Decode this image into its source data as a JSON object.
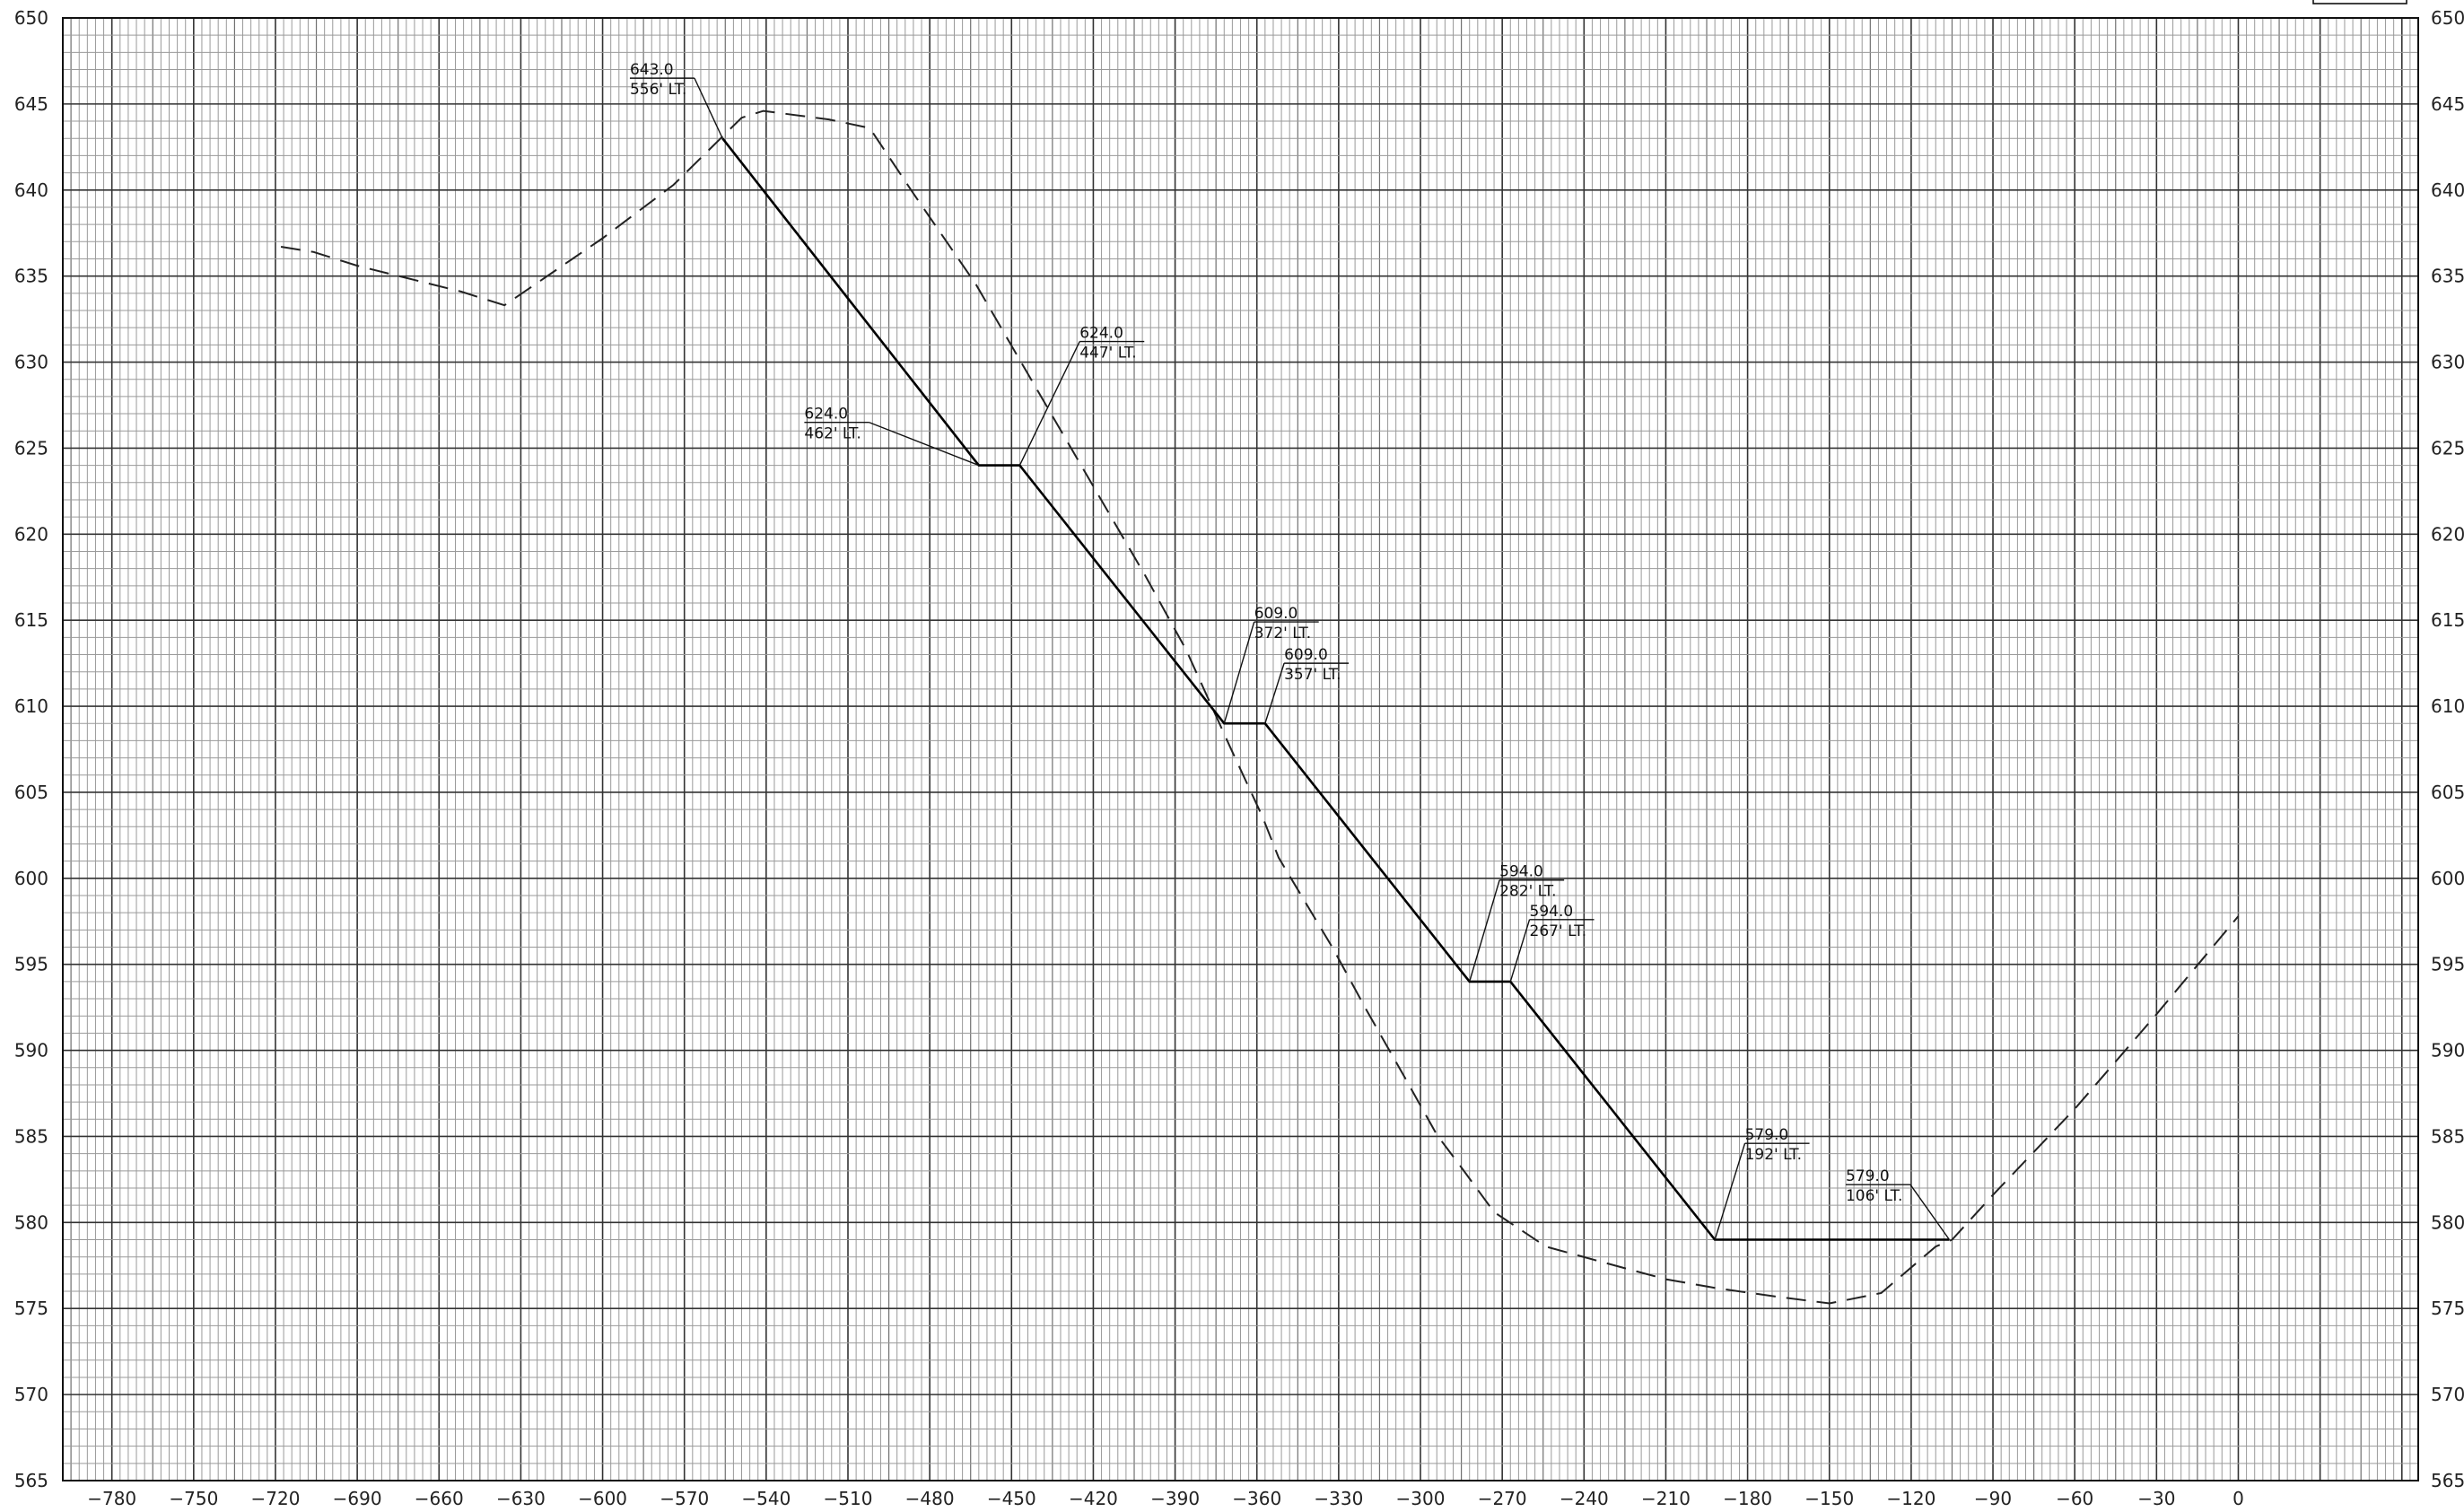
{
  "chart_data": {
    "type": "line",
    "x_axis": {
      "range": [
        -798,
        66
      ],
      "ticks": [
        -780,
        -750,
        -720,
        -690,
        -660,
        -630,
        -600,
        -570,
        -540,
        -510,
        -480,
        -450,
        -420,
        -390,
        -360,
        -330,
        -300,
        -270,
        -240,
        -210,
        -180,
        -150,
        -120,
        -90,
        -60,
        -30,
        0
      ],
      "grid_step": 3
    },
    "y_axis": {
      "range": [
        565,
        650
      ],
      "ticks": [
        565,
        570,
        575,
        580,
        585,
        590,
        595,
        600,
        605,
        610,
        615,
        620,
        625,
        630,
        635,
        640,
        645,
        650
      ],
      "grid_step": 1
    },
    "grid": true,
    "series": [
      {
        "style": "dashed",
        "points": [
          [
            -718,
            636.7
          ],
          [
            -706,
            636.4
          ],
          [
            -690,
            635.6
          ],
          [
            -652,
            634.1
          ],
          [
            -636,
            633.3
          ],
          [
            -600,
            637.2
          ],
          [
            -574,
            640.3
          ],
          [
            -549,
            644.2
          ],
          [
            -541,
            644.6
          ],
          [
            -517,
            644.1
          ],
          [
            -502,
            643.6
          ],
          [
            -486,
            639.8
          ],
          [
            -463,
            634.5
          ],
          [
            -452,
            631.5
          ],
          [
            -423,
            623.6
          ],
          [
            -401,
            617.6
          ],
          [
            -386,
            613.3
          ],
          [
            -370,
            607.7
          ],
          [
            -358,
            603.6
          ],
          [
            -352,
            601.2
          ],
          [
            -332,
            595.9
          ],
          [
            -320,
            592.4
          ],
          [
            -306,
            588.5
          ],
          [
            -294,
            585.1
          ],
          [
            -285,
            583.2
          ],
          [
            -273,
            580.6
          ],
          [
            -254,
            578.6
          ],
          [
            -231,
            577.6
          ],
          [
            -210,
            576.7
          ],
          [
            -192,
            576.2
          ],
          [
            -170,
            575.7
          ],
          [
            -150,
            575.3
          ],
          [
            -131,
            575.9
          ],
          [
            -111,
            578.6
          ],
          [
            -105,
            579.0
          ],
          [
            -90,
            581.6
          ],
          [
            -60,
            586.6
          ],
          [
            -30,
            592.1
          ],
          [
            0,
            597.8
          ]
        ]
      },
      {
        "style": "solid",
        "points": [
          [
            -556,
            643.0
          ],
          [
            -462,
            624.0
          ],
          [
            -447,
            624.0
          ],
          [
            -372,
            609.0
          ],
          [
            -357,
            609.0
          ],
          [
            -282,
            594.0
          ],
          [
            -267,
            594.0
          ],
          [
            -192,
            579.0
          ],
          [
            -106,
            579.0
          ]
        ]
      }
    ],
    "annotations": [
      {
        "lines": [
          "643.0",
          "556' LT."
        ],
        "target": [
          -556,
          643.0
        ],
        "text_at": [
          -590,
          646.5
        ]
      },
      {
        "lines": [
          "624.0",
          "447' LT."
        ],
        "target": [
          -447,
          624.0
        ],
        "text_at": [
          -425,
          631.2
        ]
      },
      {
        "lines": [
          "624.0",
          "462' LT."
        ],
        "target": [
          -462,
          624.0
        ],
        "text_at": [
          -526,
          626.5
        ]
      },
      {
        "lines": [
          "609.0",
          "372' LT."
        ],
        "target": [
          -372,
          609.0
        ],
        "text_at": [
          -361,
          614.9
        ]
      },
      {
        "lines": [
          "609.0",
          "357' LT."
        ],
        "target": [
          -357,
          609.0
        ],
        "text_at": [
          -350,
          612.5
        ]
      },
      {
        "lines": [
          "594.0",
          "282' LT."
        ],
        "target": [
          -282,
          594.0
        ],
        "text_at": [
          -271,
          599.9
        ]
      },
      {
        "lines": [
          "594.0",
          "267' LT."
        ],
        "target": [
          -267,
          594.0
        ],
        "text_at": [
          -260,
          597.6
        ]
      },
      {
        "lines": [
          "579.0",
          "192' LT."
        ],
        "target": [
          -192,
          579.0
        ],
        "text_at": [
          -181,
          584.6
        ]
      },
      {
        "lines": [
          "579.0",
          "106' LT."
        ],
        "target": [
          -106,
          579.0
        ],
        "text_at": [
          -144,
          582.2
        ]
      }
    ]
  }
}
